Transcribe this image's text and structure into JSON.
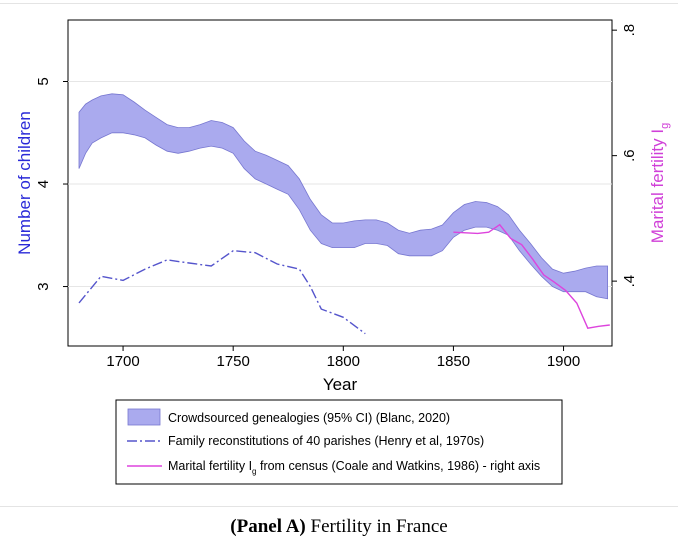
{
  "caption": {
    "label": "(Panel A)",
    "text": "Fertility in France"
  },
  "colors": {
    "band_fill": "#aaaaee",
    "band_stroke": "#7777d0",
    "henry_line": "#5555cc",
    "coale_line": "#dd44dd",
    "left_axis_title": "#2a2ad8",
    "right_axis_title": "#d040d8",
    "grid": "#e6e6e6"
  },
  "chart_data": {
    "type": "line",
    "title": "",
    "xlabel": "Year",
    "ylabel": "Number of children",
    "y2label": "Marital fertility I",
    "y2label_subscript": "g",
    "xlim": [
      1675,
      1922
    ],
    "ylim": [
      2.42,
      5.6
    ],
    "y2lim": [
      0.2966,
      0.8162
    ],
    "x_ticks": [
      1700,
      1750,
      1800,
      1850,
      1900
    ],
    "x_tick_labels": [
      "1700",
      "1750",
      "1800",
      "1850",
      "1900"
    ],
    "y_ticks": [
      3,
      4,
      5
    ],
    "y_tick_labels": [
      "3",
      "4",
      "5"
    ],
    "y2_ticks": [
      0.4,
      0.6,
      0.8
    ],
    "y2_tick_labels": [
      ".4",
      ".6",
      ".8"
    ],
    "grid": "horizontal",
    "legend_position": "bottom",
    "series": [
      {
        "name": "Crowdsourced genealogies (95% CI) (Blanc, 2020)",
        "kind": "band",
        "axis": "left",
        "x": [
          1680,
          1683,
          1686,
          1690,
          1695,
          1700,
          1705,
          1710,
          1715,
          1720,
          1725,
          1730,
          1735,
          1740,
          1745,
          1750,
          1755,
          1760,
          1765,
          1770,
          1775,
          1780,
          1785,
          1790,
          1795,
          1800,
          1805,
          1810,
          1815,
          1820,
          1825,
          1830,
          1835,
          1840,
          1845,
          1850,
          1855,
          1860,
          1865,
          1870,
          1875,
          1880,
          1885,
          1890,
          1895,
          1900,
          1905,
          1910,
          1915,
          1920
        ],
        "lower": [
          4.15,
          4.3,
          4.4,
          4.45,
          4.5,
          4.5,
          4.48,
          4.45,
          4.38,
          4.32,
          4.3,
          4.32,
          4.35,
          4.37,
          4.35,
          4.3,
          4.15,
          4.05,
          4.0,
          3.95,
          3.9,
          3.75,
          3.55,
          3.42,
          3.38,
          3.38,
          3.38,
          3.42,
          3.42,
          3.4,
          3.32,
          3.3,
          3.3,
          3.3,
          3.35,
          3.48,
          3.55,
          3.58,
          3.58,
          3.55,
          3.5,
          3.35,
          3.22,
          3.1,
          3.0,
          2.95,
          2.95,
          2.95,
          2.9,
          2.88
        ],
        "upper": [
          4.7,
          4.78,
          4.82,
          4.86,
          4.88,
          4.87,
          4.8,
          4.72,
          4.65,
          4.58,
          4.55,
          4.55,
          4.58,
          4.62,
          4.6,
          4.55,
          4.42,
          4.32,
          4.28,
          4.23,
          4.18,
          4.05,
          3.85,
          3.7,
          3.62,
          3.62,
          3.64,
          3.65,
          3.65,
          3.62,
          3.55,
          3.52,
          3.55,
          3.56,
          3.6,
          3.72,
          3.8,
          3.83,
          3.82,
          3.78,
          3.7,
          3.55,
          3.42,
          3.28,
          3.17,
          3.13,
          3.15,
          3.18,
          3.2,
          3.2
        ]
      },
      {
        "name": "Family reconstitutions of 40 parishes (Henry et al, 1970s)",
        "kind": "line",
        "style": "dash-dot",
        "axis": "left",
        "x": [
          1680,
          1690,
          1700,
          1710,
          1720,
          1730,
          1740,
          1750,
          1760,
          1770,
          1780,
          1785,
          1790,
          1800,
          1810
        ],
        "y": [
          2.84,
          3.1,
          3.06,
          3.17,
          3.26,
          3.23,
          3.2,
          3.35,
          3.33,
          3.22,
          3.17,
          3.0,
          2.78,
          2.7,
          2.54
        ]
      },
      {
        "name": "Marital fertility I",
        "name_subscript": "g",
        "name_suffix": " from census (Coale and Watkins, 1986) - right axis",
        "kind": "line",
        "style": "solid",
        "axis": "right",
        "x": [
          1850,
          1861,
          1866,
          1871,
          1876,
          1881,
          1886,
          1891,
          1896,
          1901,
          1906,
          1911,
          1916,
          1921
        ],
        "y": [
          0.478,
          0.476,
          0.478,
          0.49,
          0.468,
          0.458,
          0.435,
          0.41,
          0.398,
          0.385,
          0.365,
          0.325,
          0.328,
          0.33
        ]
      }
    ]
  }
}
